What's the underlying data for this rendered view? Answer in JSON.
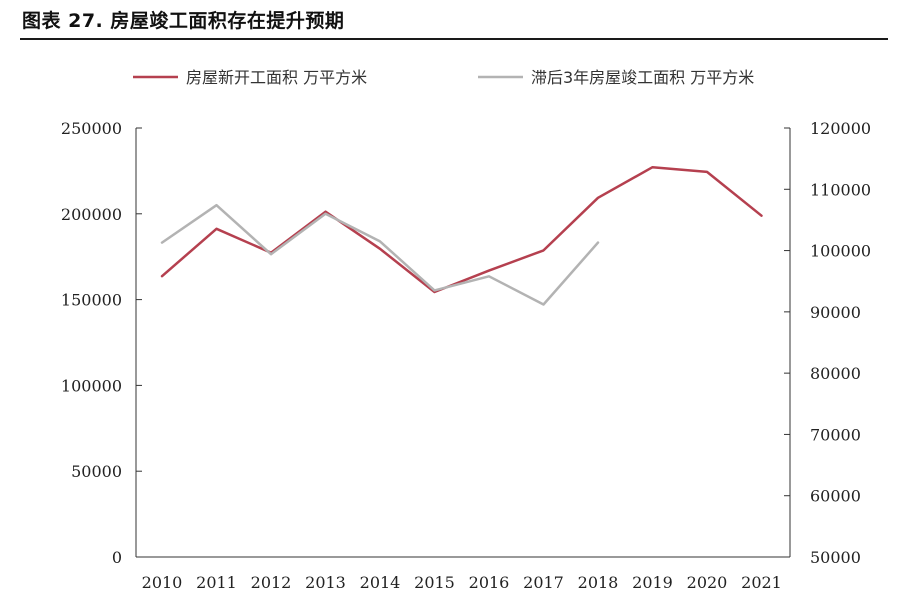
{
  "figure_title": "图表 27. 房屋竣工面积存在提升预期",
  "chart_data": {
    "type": "line",
    "title": "",
    "categories": [
      "2010",
      "2011",
      "2012",
      "2013",
      "2014",
      "2015",
      "2016",
      "2017",
      "2018",
      "2019",
      "2020",
      "2021"
    ],
    "legend_position": "top",
    "grid": false,
    "left_axis": {
      "ylim": [
        0,
        250000
      ],
      "ticks": [
        "250000",
        "200000",
        "150000",
        "100000",
        "50000",
        "0"
      ]
    },
    "right_axis": {
      "ylim": [
        50000,
        120000
      ],
      "ticks": [
        "120000",
        "110000",
        "100000",
        "90000",
        "80000",
        "70000",
        "60000",
        "50000"
      ]
    },
    "series": [
      {
        "name": "房屋新开工面积 万平方米",
        "axis": "left",
        "color": "#b5404f",
        "values": [
          163647,
          191237,
          177334,
          201208,
          179592,
          154454,
          166928,
          178654,
          209342,
          227154,
          224433,
          198895
        ]
      },
      {
        "name": "滞后3年房屋竣工面积 万平方米",
        "axis": "right",
        "color": "#b3b3b3",
        "values": [
          101300,
          107400,
          99400,
          106000,
          101500,
          93500,
          95800,
          91200,
          101300,
          null,
          null,
          null
        ]
      }
    ]
  }
}
